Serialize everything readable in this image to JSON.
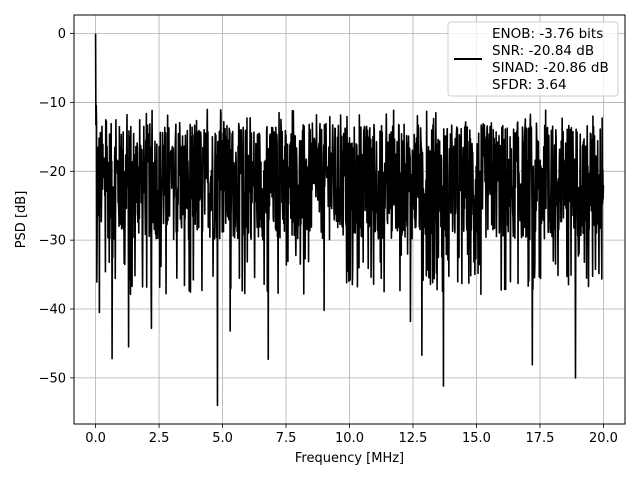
{
  "chart_data": {
    "type": "line",
    "title": "",
    "xlabel": "Frequency [MHz]",
    "ylabel": "PSD [dB]",
    "xlim": [
      -0.85,
      20.85
    ],
    "ylim": [
      -56.7,
      2.7
    ],
    "xticks": [
      0,
      2.5,
      5,
      7.5,
      10,
      12.5,
      15,
      17.5,
      20
    ],
    "xtick_labels": [
      "0.0",
      "2.5",
      "5.0",
      "7.5",
      "10.0",
      "12.5",
      "15.0",
      "17.5",
      "20.0"
    ],
    "yticks": [
      0,
      -10,
      -20,
      -30,
      -40,
      -50
    ],
    "ytick_labels": [
      "0",
      "−10",
      "−20",
      "−30",
      "−40",
      "−50"
    ],
    "grid": true,
    "legend_position": "top-right",
    "legend": [
      "ENOB: -3.76 bits",
      "SNR: -20.84 dB",
      "SINAD: -20.86 dB",
      "SFDR: 3.64"
    ],
    "line_color": "#000000",
    "series": [
      {
        "x_start": 0,
        "x_end": 20,
        "noise_floor_typical_range": [
          -30,
          -13
        ],
        "peak": {
          "x": 0.0,
          "y": 0.0
        },
        "deep_nulls": [
          {
            "x": 0.15,
            "y": -40.5
          },
          {
            "x": 0.65,
            "y": -47.2
          },
          {
            "x": 1.3,
            "y": -45.5
          },
          {
            "x": 2.2,
            "y": -42.8
          },
          {
            "x": 4.8,
            "y": -54.0
          },
          {
            "x": 5.3,
            "y": -43.2
          },
          {
            "x": 6.8,
            "y": -47.3
          },
          {
            "x": 9.0,
            "y": -40.2
          },
          {
            "x": 12.4,
            "y": -41.8
          },
          {
            "x": 12.85,
            "y": -46.7
          },
          {
            "x": 13.7,
            "y": -51.2
          },
          {
            "x": 17.2,
            "y": -48.1
          },
          {
            "x": 18.9,
            "y": -50.0
          }
        ]
      }
    ]
  }
}
